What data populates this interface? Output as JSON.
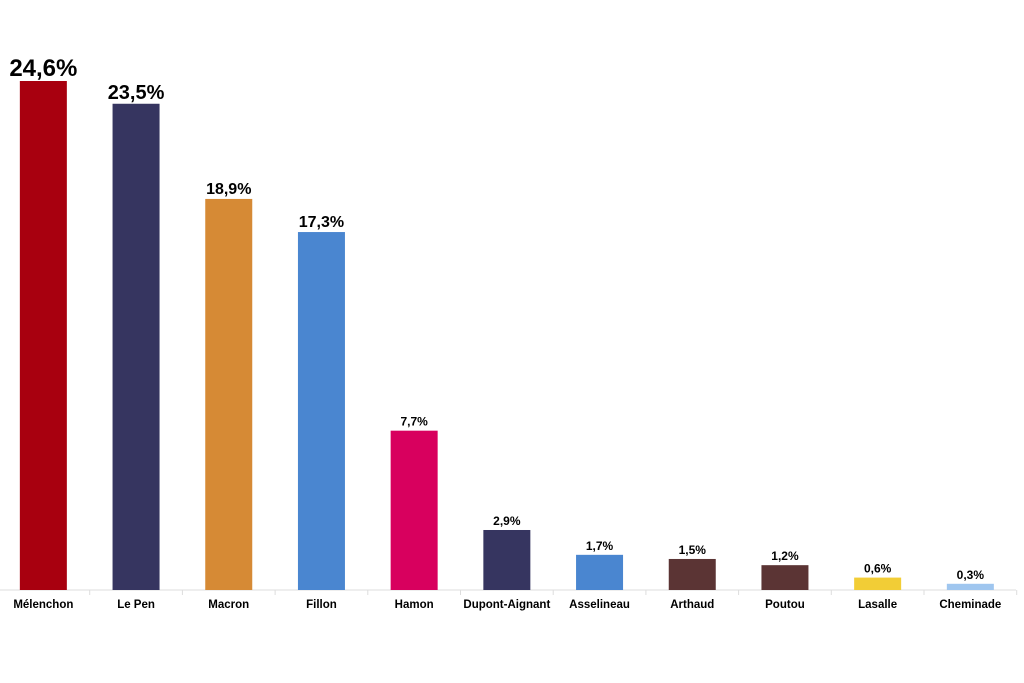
{
  "chart_data": {
    "type": "bar",
    "categories": [
      "Mélenchon",
      "Le Pen",
      "Macron",
      "Fillon",
      "Hamon",
      "Dupont-Aignant",
      "Asselineau",
      "Arthaud",
      "Poutou",
      "Lasalle",
      "Cheminade"
    ],
    "values": [
      24.6,
      23.5,
      18.9,
      17.3,
      7.7,
      2.9,
      1.7,
      1.5,
      1.2,
      0.6,
      0.3
    ],
    "value_labels": [
      "24,6%",
      "23,5%",
      "18,9%",
      "17,3%",
      "7,7%",
      "2,9%",
      "1,7%",
      "1,5%",
      "1,2%",
      "0,6%",
      "0,3%"
    ],
    "colors": [
      "#a8000f",
      "#363560",
      "#d68a35",
      "#4a86d0",
      "#d8005e",
      "#363560",
      "#4a86d0",
      "#5b3434",
      "#5b3434",
      "#f2cd36",
      "#9fc6ef"
    ]
  }
}
